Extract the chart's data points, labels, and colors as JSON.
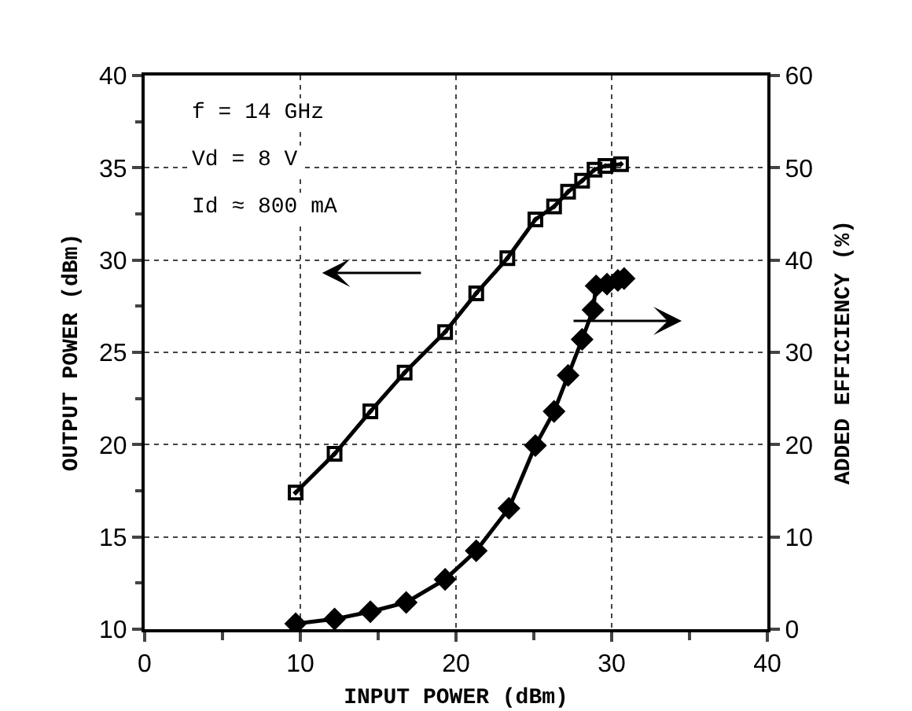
{
  "chart_data": {
    "type": "line",
    "xlabel": "INPUT POWER (dBm)",
    "ylabel": "OUTPUT POWER (dBm)",
    "y2label": "ADDED EFFICIENCY (%)",
    "xlim": [
      0,
      40
    ],
    "xticks": [
      0,
      10,
      20,
      30,
      40
    ],
    "ylim": [
      10,
      40
    ],
    "yticks": [
      10,
      15,
      20,
      25,
      30,
      35,
      40
    ],
    "y2lim": [
      0,
      60
    ],
    "y2ticks": [
      0,
      10,
      20,
      30,
      40,
      50,
      60
    ],
    "grid": true,
    "line_style": "solid",
    "annotations": [
      "f = 14 GHz",
      "Vd = 8 V",
      "Id ≈ 800 mA"
    ],
    "series": [
      {
        "color": "#000000",
        "marker": "square",
        "x": [
          9.7,
          12.2,
          14.5,
          16.7,
          19.3,
          21.3,
          23.3,
          25.1,
          26.3,
          27.2,
          28.1,
          28.9,
          29.6,
          30.6
        ],
        "values": [
          17.4,
          19.5,
          21.8,
          23.9,
          26.1,
          28.2,
          30.1,
          32.2,
          32.9,
          33.7,
          34.3,
          34.9,
          35.1,
          35.2
        ]
      },
      {
        "color": "#000000",
        "marker": "diamond",
        "axis": "y2",
        "x": [
          9.7,
          12.2,
          14.5,
          16.8,
          19.3,
          21.3,
          23.4,
          25.1,
          26.3,
          27.2,
          28.1,
          28.8,
          29.0,
          29.7,
          30.4,
          30.8
        ],
        "values": [
          0.6,
          1.1,
          1.9,
          2.9,
          5.4,
          8.5,
          13.1,
          19.9,
          23.6,
          27.5,
          31.4,
          34.6,
          37.2,
          37.4,
          37.8,
          38.0
        ]
      }
    ]
  }
}
